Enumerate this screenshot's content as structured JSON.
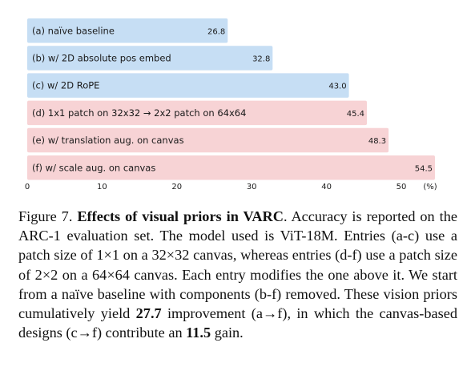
{
  "chart_data": {
    "type": "bar",
    "orientation": "horizontal",
    "categories": [
      "(a) naïve baseline",
      "(b) w/ 2D absolute pos embed",
      "(c) w/ 2D RoPE",
      "(d) 1x1 patch on 32x32  → 2x2 patch on 64x64",
      "(e) w/ translation aug. on canvas",
      "(f) w/ scale aug. on canvas"
    ],
    "values": [
      26.8,
      32.8,
      43.0,
      45.4,
      48.3,
      54.5
    ],
    "value_labels": [
      "26.8",
      "32.8",
      "43.0",
      "45.4",
      "48.3",
      "54.5"
    ],
    "bar_colors": [
      "#c6def4",
      "#c6def4",
      "#c6def4",
      "#f7d3d5",
      "#f7d3d5",
      "#f7d3d5"
    ],
    "xlim": [
      0,
      54.5
    ],
    "xticks": [
      0,
      10,
      20,
      30,
      40,
      50
    ],
    "xtick_labels": [
      "0",
      "10",
      "20",
      "30",
      "40",
      "50"
    ],
    "x_unit_label": "(%)",
    "grid": false,
    "title": "",
    "xlabel": "",
    "ylabel": ""
  },
  "caption": {
    "figure_label": "Figure 7.",
    "bold_title": "Effects of visual priors in VARC",
    "part1": ". Accuracy is reported on the ARC-1 evaluation set. The model used is ViT-18M. Entries (a-c) use a patch size of 1×1 on a 32×32 canvas, whereas entries (d-f) use a patch size of 2×2 on a 64×64 canvas. Each entry modifies the one above it. We start from a naïve baseline with components (b-f) removed. These vision priors cumulatively yield ",
    "bold_improvement": "27.7",
    "part2": " improvement (a→f), in which the canvas-based designs (c→f) contribute an ",
    "bold_gain": "11.5",
    "part3": " gain."
  }
}
